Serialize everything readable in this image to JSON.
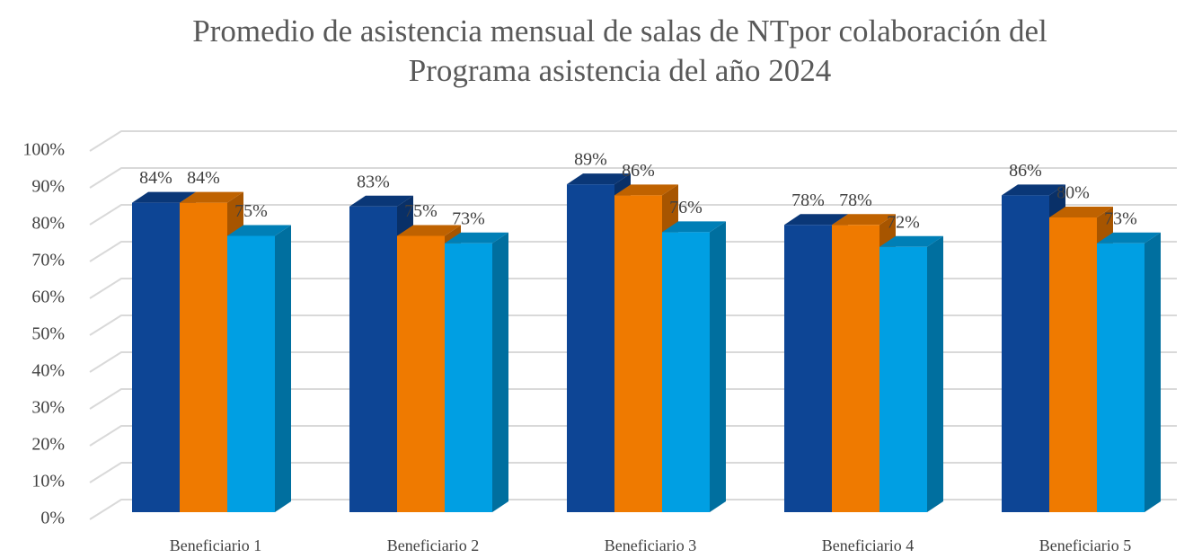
{
  "chart_data": {
    "type": "bar3d",
    "title": [
      "Promedio de asistencia mensual de salas de NTpor colaboración  del",
      "Programa asistencia del año 2024"
    ],
    "categories": [
      "Beneficiario 1",
      "Beneficiario 2",
      "Beneficiario 3",
      "Beneficiario 4",
      "Beneficiario 5"
    ],
    "series": [
      {
        "color": "#0d4595",
        "values": [
          84,
          83,
          89,
          78,
          86
        ],
        "value_labels": [
          "84%",
          "83%",
          "89%",
          "78%",
          "86%"
        ]
      },
      {
        "color": "#ef7a00",
        "values": [
          84,
          75,
          86,
          78,
          80
        ],
        "value_labels": [
          "84%",
          "75%",
          "86%",
          "78%",
          "80%"
        ]
      },
      {
        "color": "#009fe3",
        "values": [
          75,
          73,
          76,
          72,
          73
        ],
        "value_labels": [
          "75%",
          "73%",
          "76%",
          "72%",
          "73%"
        ]
      }
    ],
    "ylim": [
      0,
      100
    ],
    "yticks": [
      {
        "value": 0,
        "label": "0%"
      },
      {
        "value": 10,
        "label": "10%"
      },
      {
        "value": 20,
        "label": "20%"
      },
      {
        "value": 30,
        "label": "30%"
      },
      {
        "value": 40,
        "label": "40%"
      },
      {
        "value": 50,
        "label": "50%"
      },
      {
        "value": 60,
        "label": "60%"
      },
      {
        "value": 70,
        "label": "70%"
      },
      {
        "value": 80,
        "label": "80%"
      },
      {
        "value": 90,
        "label": "90%"
      },
      {
        "value": 100,
        "label": "100%"
      }
    ],
    "grid": true
  }
}
